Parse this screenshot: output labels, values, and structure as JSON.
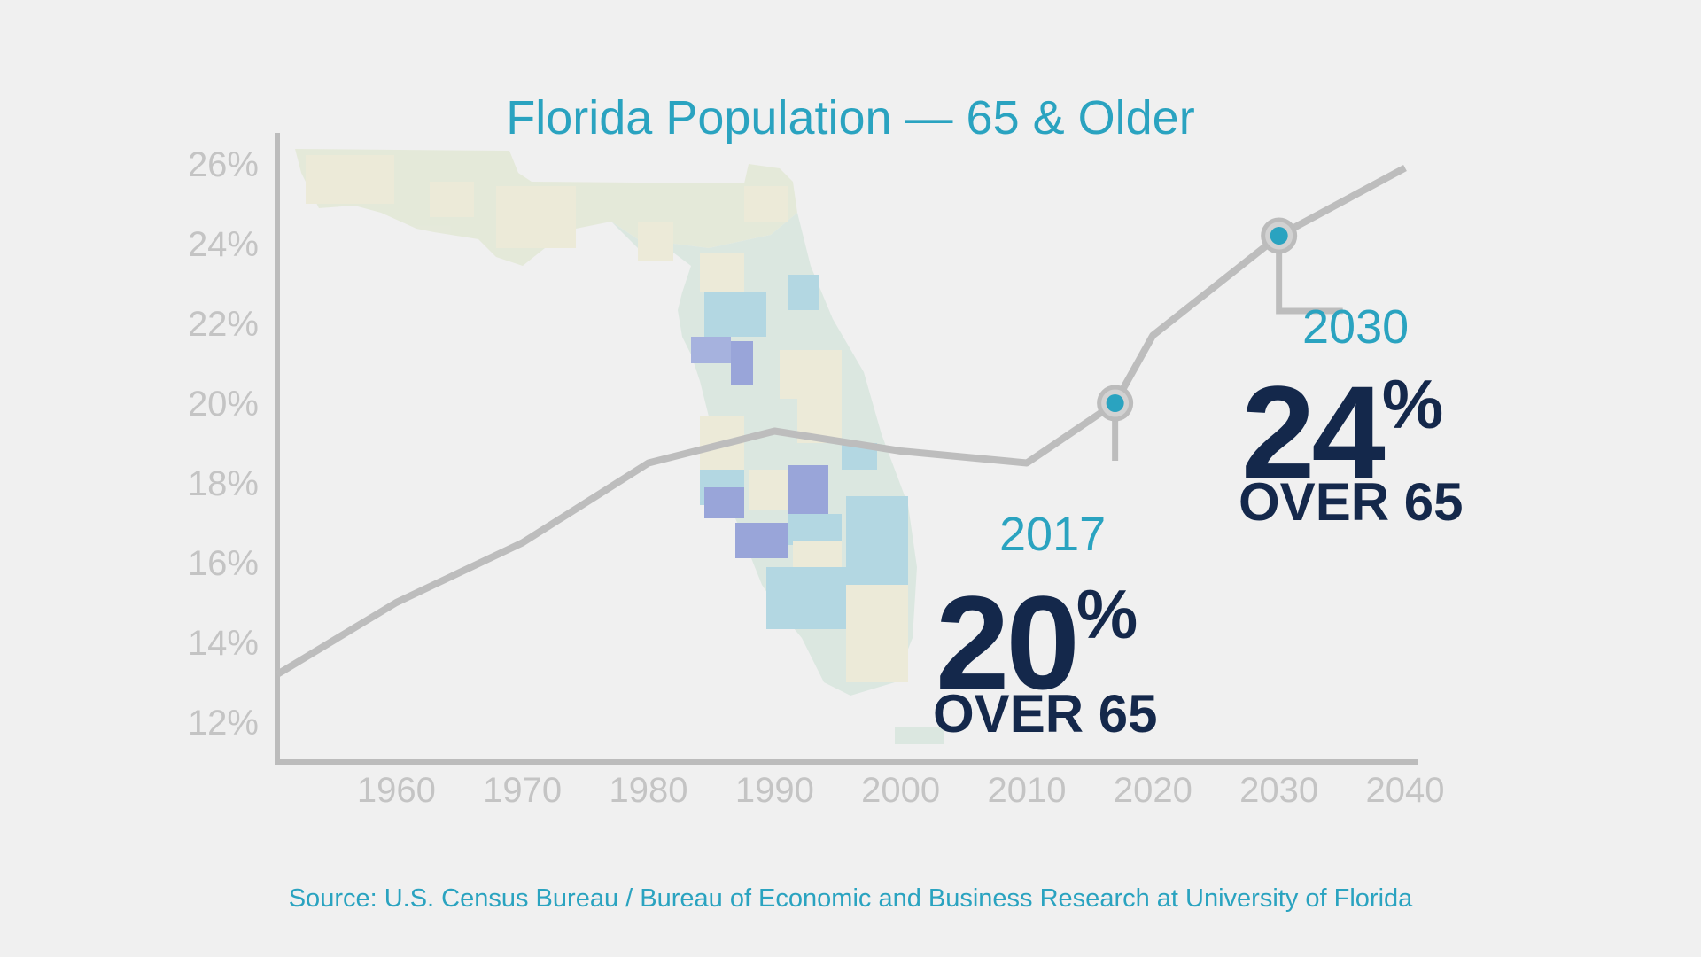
{
  "chart_data": {
    "type": "line",
    "title": "Florida Population — 65 & Older",
    "x": [
      1950,
      1960,
      1970,
      1980,
      1990,
      2000,
      2010,
      2017,
      2020,
      2030,
      2040
    ],
    "series": [
      {
        "values": [
          13.2,
          15.0,
          16.5,
          18.5,
          19.3,
          18.8,
          18.5,
          20.0,
          21.7,
          24.2,
          25.9
        ]
      }
    ],
    "y_ticks": [
      "26%",
      "24%",
      "22%",
      "20%",
      "18%",
      "16%",
      "14%",
      "12%"
    ],
    "x_ticks": [
      "1960",
      "1970",
      "1980",
      "1990",
      "2000",
      "2010",
      "2020",
      "2030",
      "2040"
    ],
    "ylim": [
      11.0,
      27.0
    ],
    "xlim": [
      1950,
      2040
    ],
    "grid": false,
    "line_color": "#bdbdbd",
    "marker_color": "#2aa3c0",
    "highlight_color": "#14284b",
    "annotations": [
      {
        "year_label": "2017",
        "x": 2017,
        "y": 20.0,
        "value": "20",
        "pct": "%",
        "sub": "OVER 65"
      },
      {
        "year_label": "2030",
        "x": 2030,
        "y": 24.2,
        "value": "24",
        "pct": "%",
        "sub": "OVER 65"
      }
    ],
    "background_image": "Florida county map (faded)"
  },
  "source": "Source: U.S. Census Bureau / Bureau of Economic and Business Research at University of Florida"
}
